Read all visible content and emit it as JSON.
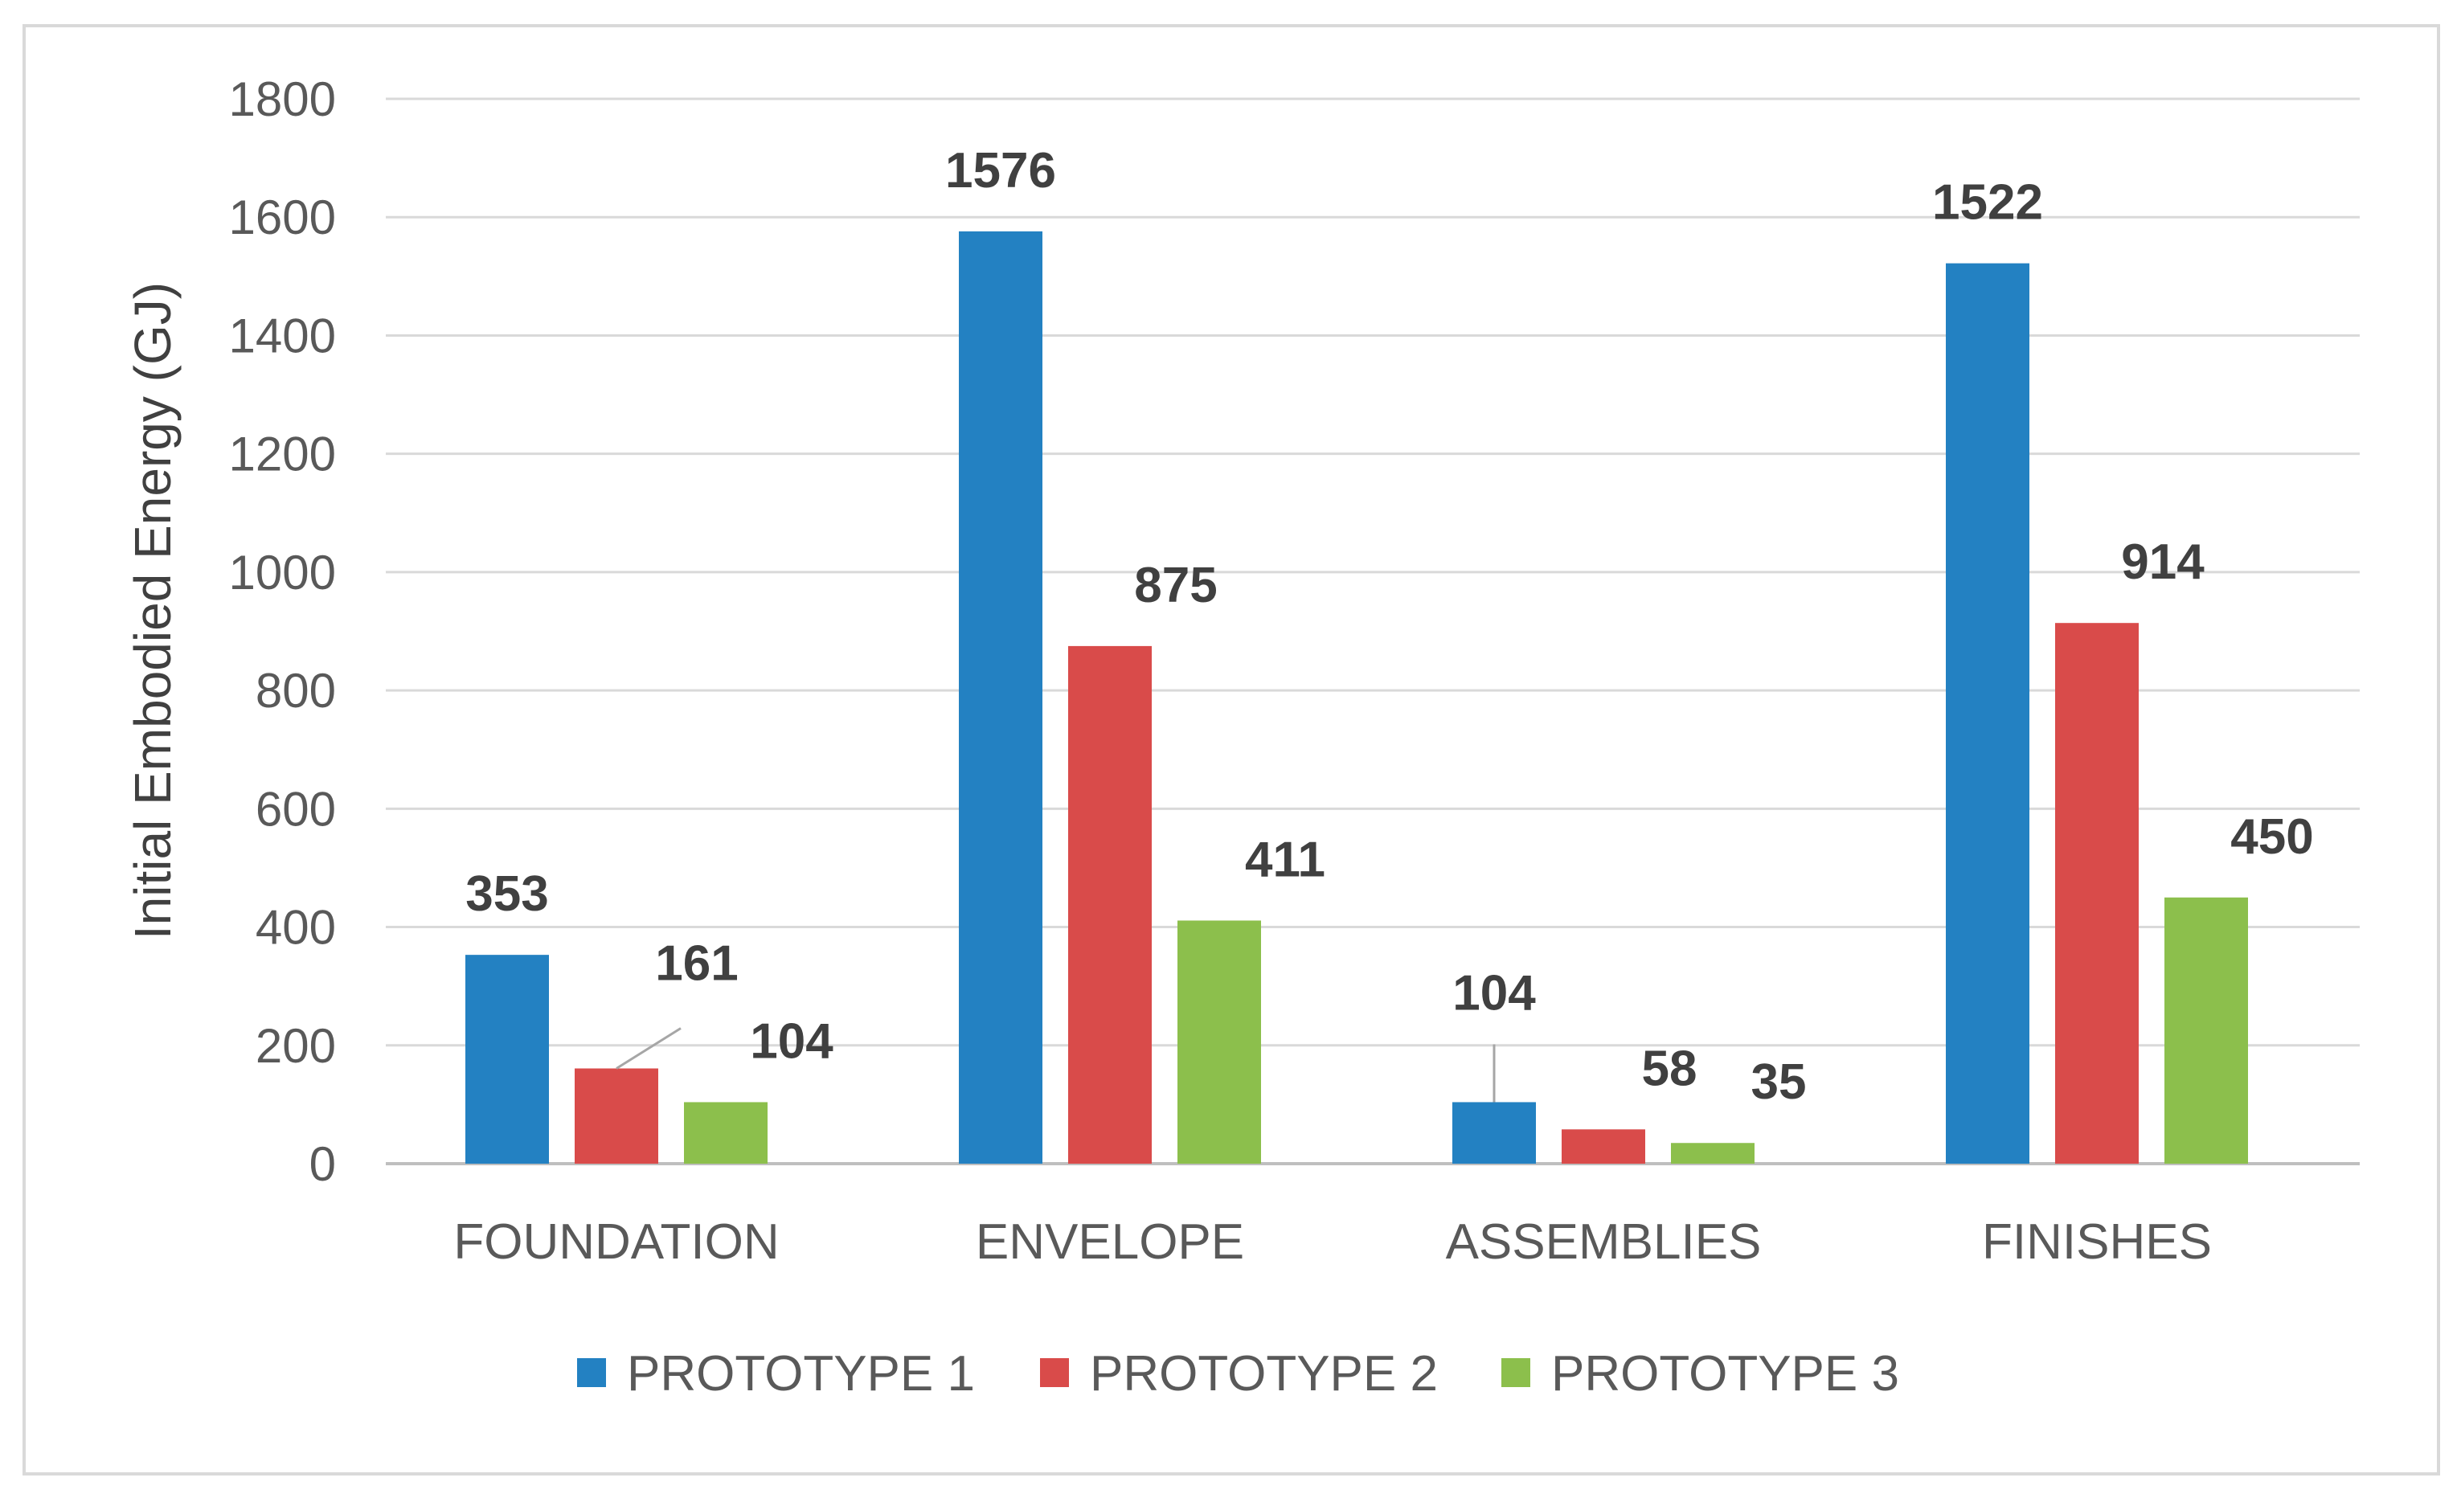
{
  "chart_data": {
    "type": "bar",
    "title": "",
    "xlabel": "",
    "ylabel": "Initial Embodied Energy (GJ)",
    "ylim": [
      0,
      1800
    ],
    "yticks": [
      0,
      200,
      400,
      600,
      800,
      1000,
      1200,
      1400,
      1600,
      1800
    ],
    "grid": true,
    "legend_position": "bottom",
    "categories": [
      "FOUNDATION",
      "ENVELOPE",
      "ASSEMBLIES",
      "FINISHES"
    ],
    "series": [
      {
        "name": "PROTOTYPE 1",
        "color": "#2381c2",
        "values": [
          353,
          1576,
          104,
          1522
        ]
      },
      {
        "name": "PROTOTYPE 2",
        "color": "#d94b4a",
        "values": [
          161,
          875,
          58,
          914
        ]
      },
      {
        "name": "PROTOTYPE 3",
        "color": "#8cbf4c",
        "values": [
          104,
          411,
          35,
          450
        ]
      }
    ],
    "data_labels": true
  }
}
